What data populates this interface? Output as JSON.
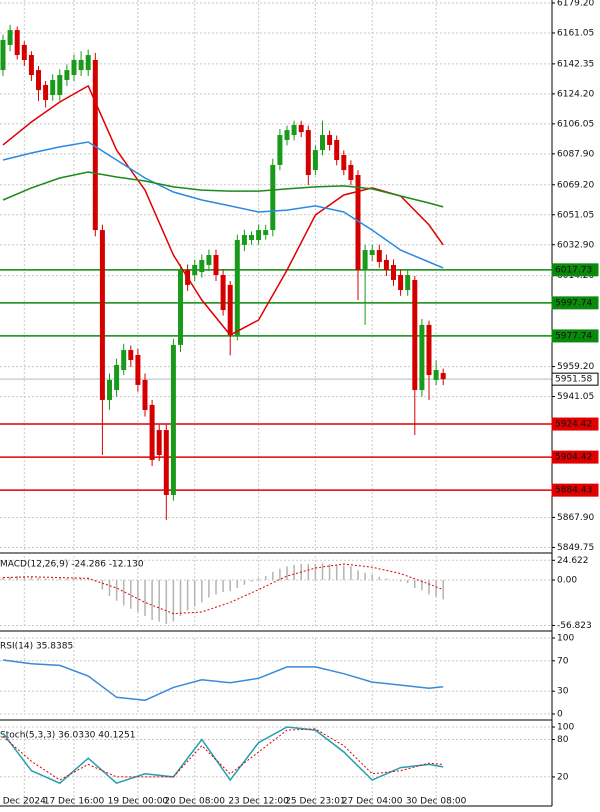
{
  "chart_data": [
    {
      "type": "candlestick",
      "grid": true,
      "up_color": "#1a9a1a",
      "down_color": "#d40000",
      "ylim": [
        5847.0,
        6181.0
      ],
      "yticks": [
        {
          "value": 6179.2,
          "label": "6179.20"
        },
        6161.05,
        6142.35,
        {
          "value": 6124.2,
          "label": "6124.20"
        },
        6106.05,
        {
          "value": 6087.9,
          "label": "6087.90"
        },
        {
          "value": 6069.2,
          "label": "6069.20"
        },
        6051.05,
        {
          "value": 6032.9,
          "label": "6032.90"
        },
        {
          "value": 6014.2,
          "label": "6014.20"
        },
        {
          "value": 5959.2,
          "label": "5959.20"
        },
        5941.05,
        {
          "value": 5867.9,
          "label": "5867.90"
        },
        5849.75
      ],
      "categories": [
        null,
        null,
        null,
        "Dec 2024",
        null,
        null,
        null,
        null,
        null,
        null,
        "17 Dec 16:00",
        null,
        null,
        null,
        null,
        null,
        null,
        null,
        null,
        "19 Dec 00:00",
        null,
        null,
        null,
        null,
        null,
        null,
        null,
        "20 Dec 08:00",
        null,
        null,
        null,
        null,
        null,
        null,
        null,
        null,
        "23 Dec 12:00",
        null,
        null,
        null,
        null,
        null,
        null,
        null,
        "25 Dec 23:01",
        null,
        null,
        null,
        null,
        null,
        null,
        null,
        "27 Dec 04:00",
        null,
        null,
        null,
        null,
        null,
        null,
        null,
        null,
        "30 Dec 08:00",
        null
      ],
      "candles": [
        [
          6138.6,
          6160,
          6135,
          6156.8
        ],
        [
          6153.8,
          6166,
          6150,
          6162.8
        ],
        [
          6162.8,
          6165,
          6145,
          6147.7
        ],
        [
          6153.8,
          6156,
          6141,
          6144.7
        ],
        [
          6147.7,
          6150,
          6132,
          6135.6
        ],
        [
          6138.6,
          6141,
          6120,
          6126.5
        ],
        [
          6129.6,
          6132,
          6116,
          6120.5
        ],
        [
          6123.5,
          6136,
          6120,
          6132.6
        ],
        [
          6123.5,
          6139,
          6120,
          6135.6
        ],
        [
          6132.6,
          6142,
          6129,
          6138.6
        ],
        [
          6135.6,
          6148,
          6132,
          6144.7
        ],
        [
          6138.6,
          6150,
          6135,
          6144.7
        ],
        [
          6138.6,
          6151,
          6135,
          6147.7
        ],
        [
          6144.7,
          6149,
          6038,
          6041.8
        ],
        [
          6041.8,
          6045,
          5905.7,
          5939.0
        ],
        [
          5939.0,
          5955,
          5933,
          5951.1
        ],
        [
          5945.0,
          5964,
          5941,
          5960.2
        ],
        [
          5957.1,
          5973,
          5954,
          5969.2
        ],
        [
          5969.2,
          5972,
          5959,
          5963.2
        ],
        [
          5966.2,
          5970,
          5944,
          5948.1
        ],
        [
          5951.1,
          5955,
          5929,
          5932.9
        ],
        [
          5936.0,
          5939,
          5899,
          5902.7
        ],
        [
          5920.8,
          5924,
          5902,
          5905.7
        ],
        [
          5920.8,
          5924,
          5866.4,
          5881.5
        ],
        [
          5881.5,
          5976,
          5878,
          5972.3
        ],
        [
          5972.3,
          6021,
          5968,
          6017.6
        ],
        [
          6017.6,
          6021,
          6005,
          6008.6
        ],
        [
          6014.6,
          6024,
          6011,
          6020.7
        ],
        [
          6016.4,
          6027,
          6013,
          6023.7
        ],
        [
          6020.7,
          6030,
          6017,
          6026.7
        ],
        [
          6026.7,
          6030,
          6011,
          6014.6
        ],
        [
          6014.6,
          6018,
          5990,
          5993.4
        ],
        [
          6008.6,
          6011,
          5966,
          5978.3
        ],
        [
          5978.3,
          6039,
          5975,
          6035.8
        ],
        [
          6032.8,
          6042,
          6029,
          6038.8
        ],
        [
          6035.8,
          6041,
          6033,
          6038.8
        ],
        [
          6035.8,
          6045,
          6033,
          6041.8
        ],
        [
          6038.8,
          6045,
          6036,
          6041.8
        ],
        [
          6041.8,
          6085,
          6038,
          6081.2
        ],
        [
          6081.2,
          6103,
          6078,
          6099.3
        ],
        [
          6096.3,
          6105,
          6093,
          6102.3
        ],
        [
          6099.3,
          6108,
          6096,
          6105.4
        ],
        [
          6105.4,
          6108,
          6098,
          6101.1
        ],
        [
          6102.3,
          6105,
          6069,
          6075.1
        ],
        [
          6078.1,
          6093,
          6075,
          6090.2
        ],
        [
          6090.2,
          6108,
          6087,
          6099.3
        ],
        [
          6099.3,
          6102,
          6090,
          6093.3
        ],
        [
          6096.3,
          6099,
          6081,
          6084.2
        ],
        [
          6087.2,
          6090,
          6075,
          6078.1
        ],
        [
          6081.2,
          6084,
          6069,
          6072.1
        ],
        [
          6075.1,
          6078,
          5999.5,
          6017.6
        ],
        [
          6017.6,
          6033,
          5984.4,
          6029.7
        ],
        [
          6026.7,
          6033,
          6023,
          6029.7
        ],
        [
          6029.7,
          6033,
          6019,
          6022.5
        ],
        [
          6023.7,
          6027,
          6014,
          6017.6
        ],
        [
          6020.7,
          6024,
          6008,
          6011.6
        ],
        [
          6014.6,
          6018,
          6002,
          6005.5
        ],
        [
          6005.5,
          6018,
          6002,
          6014.6
        ],
        [
          6011.6,
          6014,
          5917.8,
          5945.0
        ],
        [
          5945.0,
          5988,
          5941,
          5984.4
        ],
        [
          5984.4,
          5987,
          5939,
          5954.1
        ],
        [
          5951.1,
          5963,
          5948,
          5957.1
        ],
        [
          5955.3,
          5958,
          5948,
          5951.58
        ]
      ],
      "series": [
        {
          "color": "#e00000",
          "style": "line",
          "x": [
            0,
            4,
            8,
            12,
            16,
            20,
            24,
            28,
            32,
            36,
            40,
            44,
            48,
            52,
            56,
            60,
            62
          ],
          "values": [
            6093.3,
            6107.2,
            6119.3,
            6129.0,
            6090.2,
            6066.0,
            6026.7,
            5999.5,
            5978.3,
            5987.4,
            6017.6,
            6050.9,
            6063.0,
            6067.3,
            6062.4,
            6044.9,
            6032.8
          ]
        },
        {
          "color": "#2a8ae0",
          "style": "line",
          "x": [
            0,
            4,
            8,
            12,
            16,
            20,
            24,
            28,
            32,
            36,
            40,
            44,
            48,
            52,
            56,
            60,
            62
          ],
          "values": [
            6084.2,
            6088.4,
            6092.1,
            6095.1,
            6084.2,
            6073.3,
            6064.8,
            6060.0,
            6056.4,
            6052.7,
            6053.9,
            6056.4,
            6052.7,
            6041.8,
            6029.7,
            6022.5,
            6018.9
          ]
        },
        {
          "color": "#1a8a1a",
          "style": "line",
          "x": [
            0,
            4,
            8,
            12,
            16,
            20,
            24,
            28,
            32,
            36,
            40,
            44,
            48,
            52,
            56,
            60,
            62
          ],
          "values": [
            6060.0,
            6067.3,
            6073.3,
            6076.9,
            6073.9,
            6071.5,
            6067.9,
            6066.0,
            6065.4,
            6065.4,
            6066.7,
            6067.9,
            6068.5,
            6066.7,
            6062.4,
            6058.2,
            6055.8
          ]
        }
      ],
      "levels": [
        {
          "value": 6017.73,
          "color": "#0a8a0a"
        },
        {
          "value": 5997.74,
          "color": "#0a8a0a"
        },
        {
          "value": 5977.74,
          "color": "#0a8a0a"
        },
        {
          "value": 5951.58,
          "color": "#c8d0dc"
        },
        {
          "value": 5924.42,
          "color": "#e00000"
        },
        {
          "value": 5904.42,
          "color": "#e00000"
        },
        {
          "value": 5884.43,
          "color": "#e00000"
        }
      ]
    },
    {
      "type": "macd",
      "title": "MACD(12,26,9) -24.286 -12.130",
      "grid": true,
      "ylim": [
        -60,
        30
      ],
      "yticks": [
        24.622,
        {
          "value": 0,
          "label": "0.00"
        },
        -56.823
      ],
      "series": [
        {
          "color": "#b4b4b4",
          "style": "bar",
          "values": [
            3,
            4,
            5,
            5,
            4,
            3,
            2,
            2,
            2,
            2,
            3,
            3,
            3,
            -2,
            -12,
            -20,
            -26,
            -32,
            -36,
            -40,
            -45,
            -50,
            -52,
            -55,
            -52,
            -45,
            -38,
            -33,
            -28,
            -22,
            -18,
            -15,
            -14,
            -10,
            -6,
            -2,
            2,
            5,
            10,
            14,
            17,
            19,
            20,
            20,
            20,
            21,
            20,
            19,
            18,
            17,
            12,
            9,
            7,
            4,
            2,
            0,
            -2,
            -4,
            -10,
            -13,
            -18,
            -21,
            -24.286
          ]
        },
        {
          "color": "#e00000",
          "style": "dotted",
          "x": [
            0,
            4,
            8,
            12,
            16,
            20,
            24,
            28,
            32,
            36,
            40,
            44,
            48,
            52,
            56,
            60,
            62
          ],
          "values": [
            3,
            4,
            3,
            2,
            -10,
            -28,
            -42,
            -40,
            -28,
            -12,
            5,
            15,
            20,
            16,
            8,
            -5,
            -12.13
          ]
        }
      ]
    },
    {
      "type": "line",
      "title": "RSI(14) 35.8385",
      "grid": true,
      "ylim": [
        0,
        100
      ],
      "yticks": [
        100,
        70,
        30,
        0
      ],
      "series": [
        {
          "color": "#3a8ad8",
          "style": "line",
          "x": [
            0,
            4,
            8,
            12,
            16,
            20,
            24,
            28,
            32,
            36,
            40,
            44,
            48,
            52,
            56,
            60,
            62
          ],
          "values": [
            71,
            66,
            64,
            50,
            22,
            18,
            35,
            45,
            41,
            47,
            62,
            62,
            53,
            42,
            38,
            34,
            35.8385
          ]
        }
      ]
    },
    {
      "type": "line",
      "title": "Stoch(5,3,3) 36.0330 40.1251",
      "grid": true,
      "ylim": [
        -25,
        100
      ],
      "yticks": [
        100,
        80,
        20
      ],
      "series": [
        {
          "color": "#20a0b0",
          "style": "line",
          "x": [
            0,
            4,
            8,
            12,
            16,
            20,
            24,
            28,
            32,
            36,
            40,
            44,
            48,
            52,
            56,
            60,
            62
          ],
          "values": [
            90,
            30,
            10,
            50,
            10,
            25,
            20,
            80,
            15,
            75,
            100,
            95,
            60,
            15,
            35,
            40,
            36.033
          ]
        },
        {
          "color": "#e00000",
          "style": "dotted",
          "x": [
            0,
            4,
            8,
            12,
            16,
            20,
            24,
            28,
            32,
            36,
            40,
            44,
            48,
            52,
            56,
            60,
            62
          ],
          "values": [
            85,
            45,
            15,
            40,
            20,
            20,
            20,
            70,
            25,
            60,
            95,
            97,
            70,
            25,
            30,
            42,
            40.1251
          ]
        }
      ]
    }
  ]
}
